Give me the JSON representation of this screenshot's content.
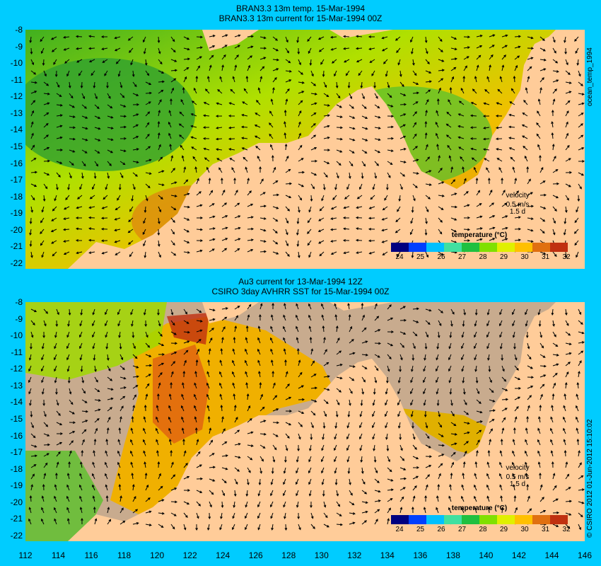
{
  "top_panel": {
    "title_line1": "BRAN3.3 13m temp. 15-Mar-1994",
    "title_line2": "BRAN3.3 13m current for 15-Mar-1994 00Z",
    "side_label": "ocean_temp_1994",
    "velocity_label": "velocity",
    "velocity_scale": "0.5 m/s",
    "velocity_time": "1.5 d",
    "colorbar_title": "temperature (°C)"
  },
  "bottom_panel": {
    "title_line1": "Au3 current for 13-Mar-1994 12Z",
    "title_line2": "CSIRO 3day AVHRR SST for 15-Mar-1994 00Z",
    "side_label": "© CSIRO 2012  01-Jun-2012 15:10:02",
    "velocity_label": "velocity",
    "velocity_scale": "0.5 m/s",
    "velocity_time": "1.5 d",
    "colorbar_title": "temperature (°C)"
  },
  "y_ticks": [
    "-8",
    "-9",
    "-10",
    "-11",
    "-12",
    "-13",
    "-14",
    "-15",
    "-16",
    "-17",
    "-18",
    "-19",
    "-20",
    "-21",
    "-22"
  ],
  "x_ticks": [
    "112",
    "114",
    "116",
    "118",
    "120",
    "122",
    "124",
    "126",
    "128",
    "130",
    "132",
    "134",
    "136",
    "138",
    "140",
    "142",
    "144",
    "146"
  ],
  "colorbar_ticks": [
    "24",
    "25",
    "26",
    "27",
    "28",
    "29",
    "30",
    "31",
    "32"
  ],
  "colors": {
    "background": "#00ccff",
    "land": "#ffcc99",
    "missing_data": "#c8ab8e",
    "colorbar": [
      "#000080",
      "#0040ff",
      "#00c0ff",
      "#40e0a0",
      "#20c040",
      "#80e000",
      "#e0f000",
      "#ffc000",
      "#e07010",
      "#c03010"
    ]
  }
}
